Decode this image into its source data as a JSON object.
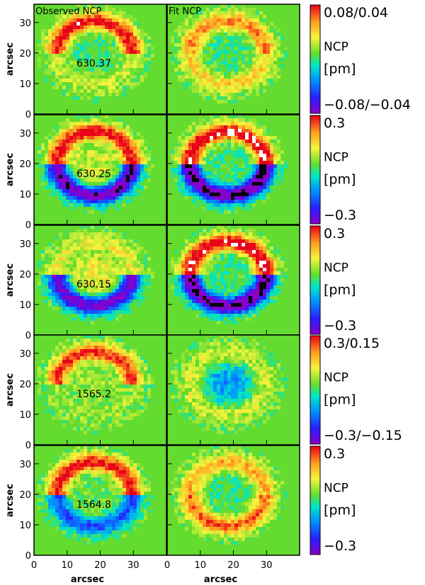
{
  "figure": {
    "column_titles": [
      "Observed NCP",
      "Fit NCP"
    ],
    "ylabel": "arcsec",
    "xlabel": "arcsec",
    "y_ticks": [
      "0",
      "10",
      "20",
      "30"
    ],
    "x_ticks": [
      "0",
      "10",
      "20",
      "30"
    ]
  },
  "rows": [
    {
      "line_label": "630.37",
      "cb_top": "0.08/0.04",
      "cb_mid1": "NCP",
      "cb_mid2": "[pm]",
      "cb_bottom": "−0.08/−0.04",
      "obs": {
        "ring_sign": 1.0,
        "lower_sign": 0.3,
        "center": 0.0
      },
      "fit": {
        "ring_sign": 0.7,
        "lower_sign": 0.5,
        "center": 0.0
      }
    },
    {
      "line_label": "630.25",
      "cb_top": "0.3",
      "cb_mid1": "NCP",
      "cb_mid2": "[pm]",
      "cb_bottom": "−0.3",
      "obs": {
        "ring_sign": 1.0,
        "lower_sign": -1.1,
        "center": 0.3
      },
      "fit": {
        "ring_sign": 1.1,
        "lower_sign": -1.2,
        "center": 0.0
      }
    },
    {
      "line_label": "630.15",
      "cb_top": "0.3",
      "cb_mid1": "NCP",
      "cb_mid2": "[pm]",
      "cb_bottom": "−0.3",
      "obs": {
        "ring_sign": 0.4,
        "lower_sign": -1.0,
        "center": 0.4
      },
      "fit": {
        "ring_sign": 1.1,
        "lower_sign": -1.2,
        "center": 0.0
      }
    },
    {
      "line_label": "1565.2",
      "cb_top": "0.3/0.15",
      "cb_mid1": "NCP",
      "cb_mid2": "[pm]",
      "cb_bottom": "−0.3/−0.15",
      "obs": {
        "ring_sign": 0.9,
        "lower_sign": 0.2,
        "center": 0.2
      },
      "fit": {
        "ring_sign": 0.3,
        "lower_sign": 0.3,
        "center": -0.35
      }
    },
    {
      "line_label": "1564.8",
      "cb_top": "0.3",
      "cb_mid1": "NCP",
      "cb_mid2": "[pm]",
      "cb_bottom": "−0.3",
      "obs": {
        "ring_sign": 1.0,
        "lower_sign": -0.6,
        "center": 0.1
      },
      "fit": {
        "ring_sign": 0.6,
        "lower_sign": 0.8,
        "center": 0.0
      }
    }
  ],
  "chart_data": {
    "type": "heatmap",
    "title": "",
    "xlabel": "arcsec",
    "ylabel": "arcsec",
    "xlim": [
      0,
      40
    ],
    "ylim": [
      0,
      36
    ],
    "x_ticks": [
      0,
      10,
      20,
      30
    ],
    "y_ticks": [
      0,
      10,
      20,
      30
    ],
    "columns": [
      "Observed NCP",
      "Fit NCP"
    ],
    "colormap": "rainbow (purple-blue-cyan-green-yellow-red), white/black saturation",
    "panels": [
      {
        "row": "630.37",
        "colorbar_range": "−0.08/−0.04 to 0.08/0.04 pm"
      },
      {
        "row": "630.25",
        "colorbar_range": "−0.3 to 0.3 pm"
      },
      {
        "row": "630.15",
        "colorbar_range": "−0.3 to 0.3 pm"
      },
      {
        "row": "1565.2",
        "colorbar_range": "−0.3/−0.15 to 0.3/0.15 pm"
      },
      {
        "row": "1564.8",
        "colorbar_range": "−0.3 to 0.3 pm"
      }
    ]
  }
}
